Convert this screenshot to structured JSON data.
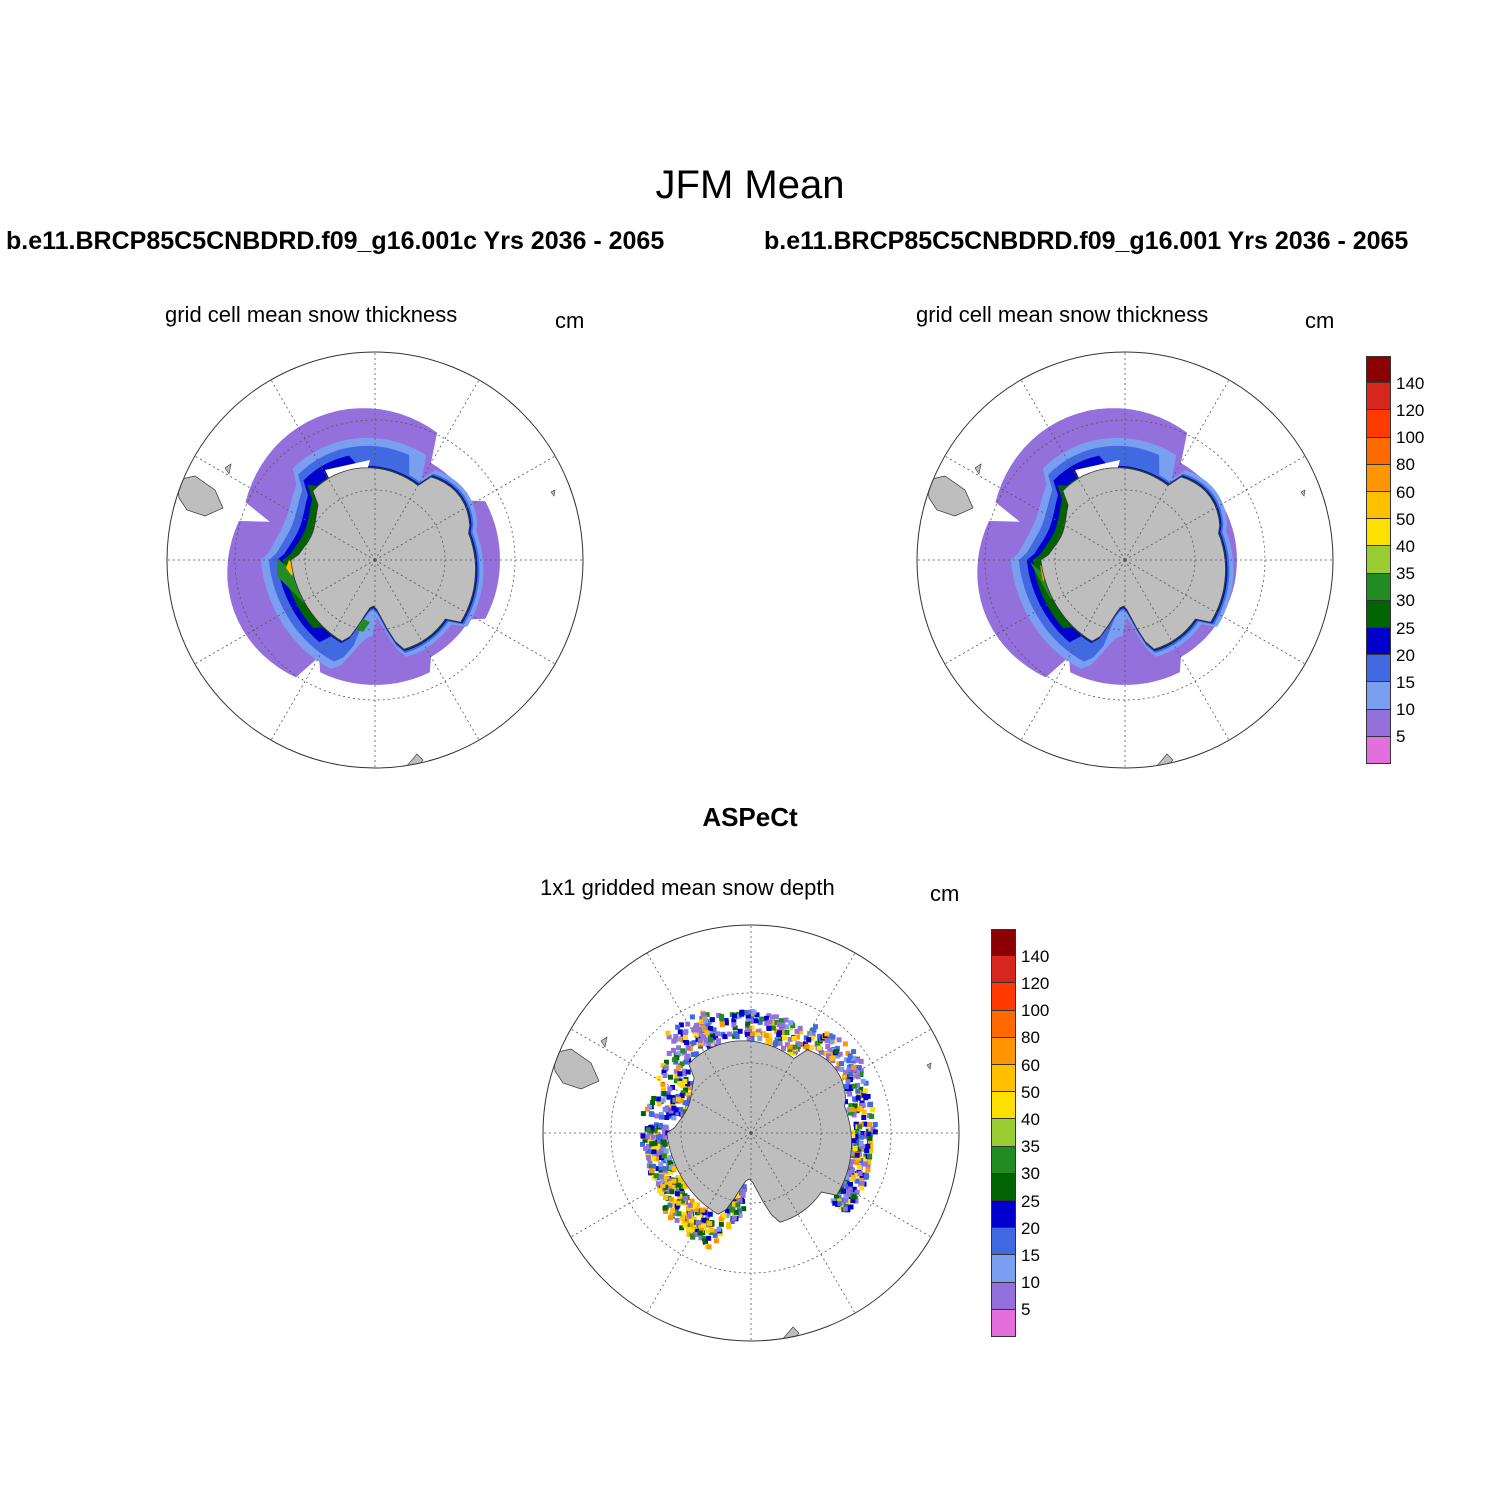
{
  "figure": {
    "title": "JFM Mean"
  },
  "panels": {
    "left": {
      "run_title": "b.e11.BRCP85C5CNBDRD.f09_g16.001c  Yrs 2036 - 2065",
      "subtitle": "grid cell mean snow thickness",
      "units": "cm"
    },
    "right": {
      "run_title": "b.e11.BRCP85C5CNBDRD.f09_g16.001  Yrs 2036 - 2065",
      "subtitle": "grid cell mean snow thickness",
      "units": "cm"
    },
    "bottom": {
      "title": "ASPeCt",
      "subtitle": "1x1 gridded mean snow depth",
      "units": "cm"
    }
  },
  "colorbar": {
    "labels": [
      "140",
      "120",
      "100",
      "80",
      "60",
      "50",
      "40",
      "35",
      "30",
      "25",
      "20",
      "15",
      "10",
      "5"
    ],
    "colors": [
      "#8b0000",
      "#d7261e",
      "#ff3a00",
      "#ff6a00",
      "#ff9500",
      "#ffc000",
      "#ffe000",
      "#9acd32",
      "#228b22",
      "#006400",
      "#0000cd",
      "#4169e1",
      "#7b9ff0",
      "#9370db",
      "#e36fdc"
    ]
  },
  "chart_data": {
    "type": "heatmap",
    "title": "JFM Mean",
    "projection": "south polar stereographic",
    "variable": "snow thickness / depth",
    "units": "cm",
    "contour_levels": [
      5,
      10,
      15,
      20,
      25,
      30,
      35,
      40,
      50,
      60,
      80,
      100,
      120,
      140
    ],
    "colors": {
      "land": "#bebebe",
      "ocean": "#ffffff",
      "grid": "#555555"
    }
  }
}
